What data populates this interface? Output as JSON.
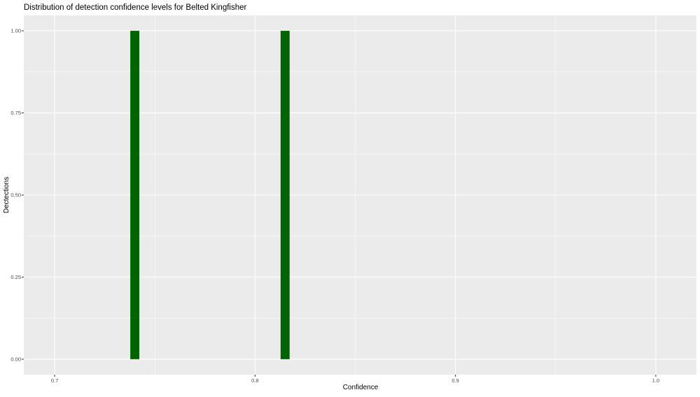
{
  "chart_data": {
    "type": "bar",
    "title": "Distribution of detection confidence levels for Belted Kingfisher",
    "xlabel": "Confidence",
    "ylabel": "Dectections",
    "xlim": [
      0.6846,
      1.0203
    ],
    "ylim": [
      -0.047,
      1.047
    ],
    "x_ticks": [
      0.7,
      0.8,
      0.9,
      1.0
    ],
    "x_tick_labels": [
      "0.7",
      "0.8",
      "0.9",
      "1.0"
    ],
    "y_ticks": [
      0,
      0.25,
      0.5,
      0.75,
      1.0
    ],
    "y_tick_labels": [
      "0.00",
      "0.25",
      "0.50",
      "0.75",
      "1.00"
    ],
    "grid": true,
    "bar_width": 0.0045,
    "bars": [
      {
        "x": 0.74,
        "y": 1
      },
      {
        "x": 0.815,
        "y": 1
      }
    ],
    "colors": {
      "bar": "#006400",
      "panel": "#ebebeb",
      "grid": "#ffffff"
    }
  }
}
